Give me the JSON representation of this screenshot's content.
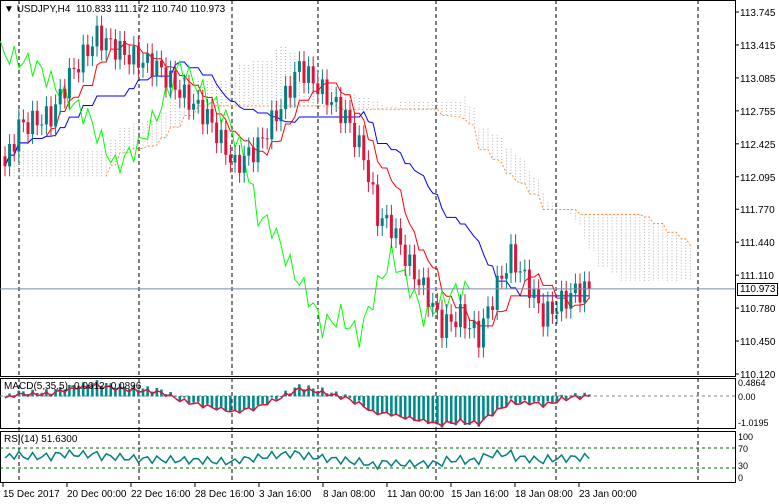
{
  "header": {
    "symbol": "USDJPY,H4",
    "open": "110.833",
    "high": "111.172",
    "low": "110.740",
    "close": "110.973"
  },
  "macd_label": "MACD(5,35,5) -0.0612 -0.0896",
  "rsi_label": "RSI(14) 51.6300",
  "current_price": "110.973",
  "chart_data": [
    {
      "type": "candlestick",
      "title": "USDJPY,H4",
      "ylim": [
        110.12,
        113.745
      ],
      "yticks": [
        "113.745",
        "113.415",
        "113.085",
        "112.755",
        "112.425",
        "112.095",
        "111.770",
        "111.440",
        "111.110",
        "110.780",
        "110.450",
        "110.120"
      ],
      "xticks": [
        "15 Dec 2017",
        "20 Dec 00:00",
        "22 Dec 16:00",
        "28 Dec 16:00",
        "3 Jan 16:00",
        "8 Jan 08:00",
        "11 Jan 00:00",
        "15 Jan 16:00",
        "18 Jan 08:00",
        "23 Jan 00:00"
      ],
      "close_keypoints": [
        [
          0,
          112.2
        ],
        [
          3,
          112.6
        ],
        [
          10,
          112.7
        ],
        [
          14,
          113.1
        ],
        [
          20,
          113.5
        ],
        [
          27,
          113.3
        ],
        [
          33,
          113.2
        ],
        [
          39,
          112.9
        ],
        [
          44,
          112.7
        ],
        [
          50,
          112.2
        ],
        [
          55,
          112.4
        ],
        [
          60,
          112.8
        ],
        [
          64,
          113.2
        ],
        [
          68,
          113.0
        ],
        [
          74,
          112.7
        ],
        [
          78,
          112.3
        ],
        [
          81,
          111.7
        ],
        [
          84,
          111.6
        ],
        [
          88,
          111.2
        ],
        [
          92,
          110.9
        ],
        [
          95,
          110.6
        ],
        [
          99,
          110.7
        ],
        [
          103,
          110.5
        ],
        [
          107,
          111.0
        ],
        [
          110,
          111.3
        ],
        [
          114,
          111.0
        ],
        [
          117,
          110.7
        ],
        [
          120,
          110.8
        ],
        [
          124,
          110.95
        ],
        [
          127,
          110.97
        ]
      ],
      "colors": {
        "up": "#008080",
        "down": "#dc143c",
        "tenkan": "#ff0000",
        "kijun": "#0000ff",
        "chikou": "#00ff00",
        "cloud": "#b0b0b0",
        "cloud_lower": "#ff8c40"
      }
    },
    {
      "type": "bar+line",
      "title": "MACD(5,35,5)",
      "yticks": [
        "0.4864",
        "0.00",
        "-1.0195"
      ],
      "main": -0.0612,
      "signal": -0.0896
    },
    {
      "type": "line",
      "title": "RSI(14)",
      "yticks": [
        "100",
        "70",
        "30",
        "0"
      ],
      "levels": [
        70,
        30
      ],
      "value": 51.63
    }
  ]
}
